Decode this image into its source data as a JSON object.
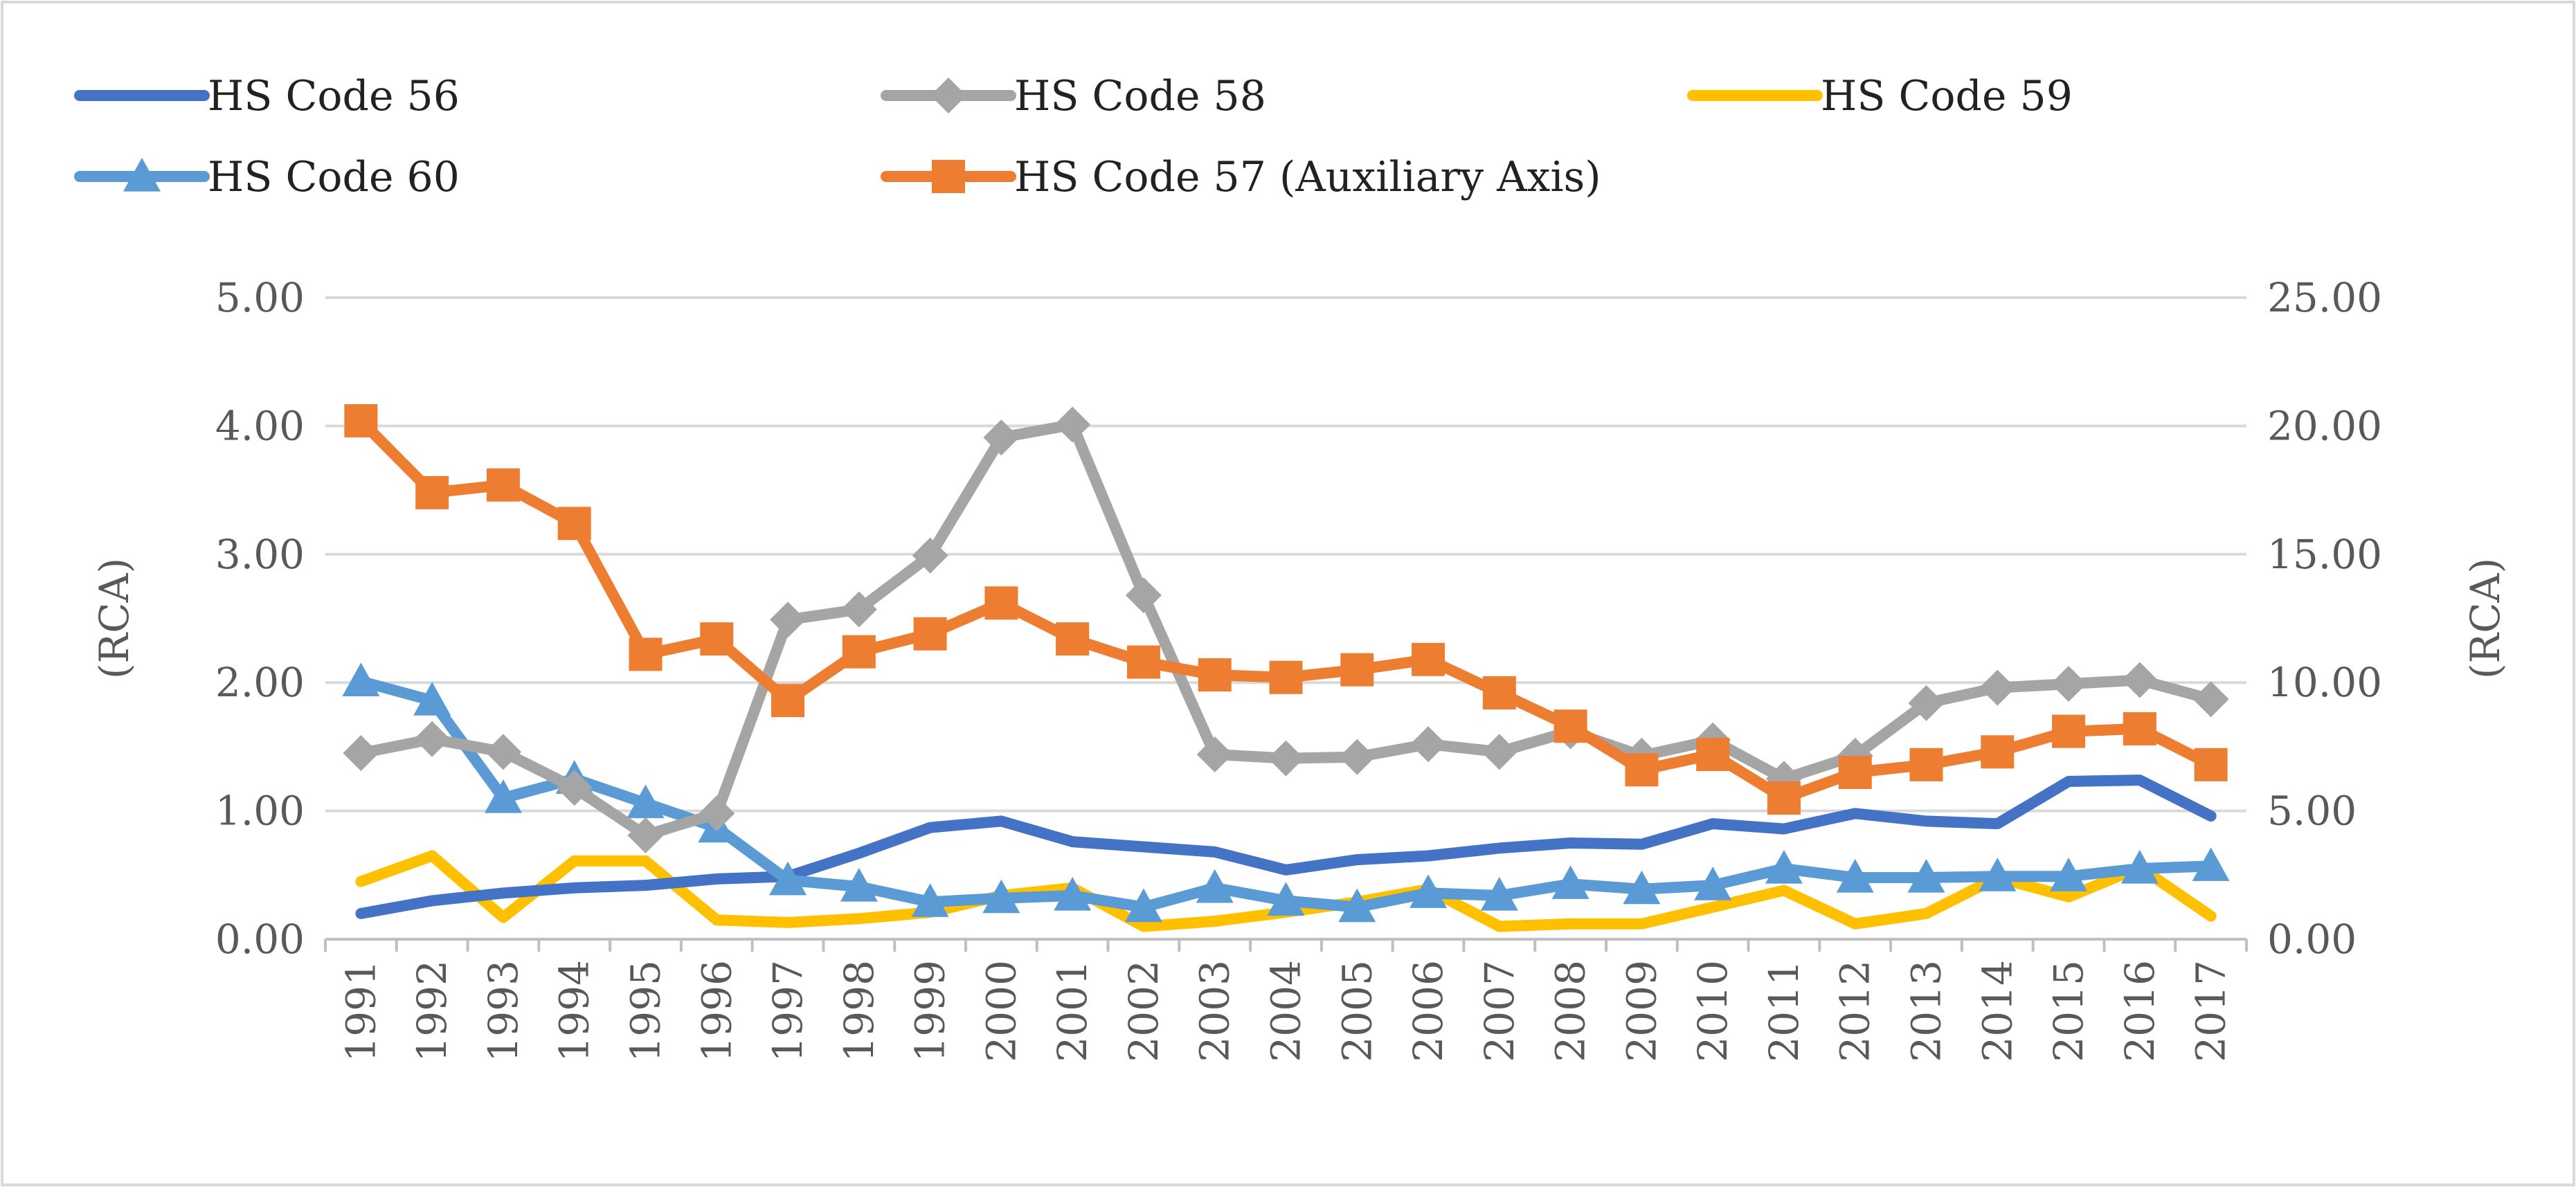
{
  "chart_data": {
    "type": "line",
    "title": "",
    "x": [
      "1991",
      "1992",
      "1993",
      "1994",
      "1995",
      "1996",
      "1997",
      "1998",
      "1999",
      "2000",
      "2001",
      "2002",
      "2003",
      "2004",
      "2005",
      "2006",
      "2007",
      "2008",
      "2009",
      "2010",
      "2011",
      "2012",
      "2013",
      "2014",
      "2015",
      "2016",
      "2017"
    ],
    "y_left": {
      "label": "(RCA)",
      "ticks": [
        "0.00",
        "1.00",
        "2.00",
        "3.00",
        "4.00",
        "5.00"
      ],
      "ylim": [
        0,
        5
      ]
    },
    "y_right": {
      "label": "(RCA)",
      "ticks": [
        "0.00",
        "5.00",
        "10.00",
        "15.00",
        "20.00",
        "25.00"
      ],
      "ylim": [
        0,
        25
      ]
    },
    "grid": "horizontal",
    "legend_position": "top",
    "series": [
      {
        "name": "HS Code 56",
        "axis": "left",
        "color": "#4472C4",
        "marker": "none",
        "values": [
          0.2,
          0.3,
          0.36,
          0.4,
          0.42,
          0.47,
          0.49,
          0.67,
          0.87,
          0.92,
          0.76,
          0.72,
          0.68,
          0.54,
          0.62,
          0.65,
          0.71,
          0.75,
          0.74,
          0.9,
          0.86,
          0.98,
          0.92,
          0.9,
          1.23,
          1.24,
          0.96
        ]
      },
      {
        "name": "HS Code 58",
        "axis": "left",
        "color": "#A5A5A5",
        "marker": "diamond",
        "values": [
          1.45,
          1.56,
          1.46,
          1.18,
          0.81,
          0.98,
          2.49,
          2.57,
          2.99,
          3.91,
          4.01,
          2.68,
          1.44,
          1.41,
          1.42,
          1.52,
          1.46,
          1.62,
          1.43,
          1.55,
          1.25,
          1.43,
          1.84,
          1.96,
          1.99,
          2.02,
          1.87
        ]
      },
      {
        "name": "HS Code 59",
        "axis": "left",
        "color": "#FFC000",
        "marker": "none",
        "values": [
          0.45,
          0.65,
          0.17,
          0.61,
          0.61,
          0.15,
          0.13,
          0.16,
          0.21,
          0.34,
          0.4,
          0.1,
          0.14,
          0.21,
          0.29,
          0.39,
          0.1,
          0.12,
          0.12,
          0.25,
          0.38,
          0.12,
          0.2,
          0.48,
          0.33,
          0.56,
          0.18
        ]
      },
      {
        "name": "HS Code 60",
        "axis": "left",
        "color": "#5B9BD5",
        "marker": "triangle",
        "values": [
          2.01,
          1.86,
          1.1,
          1.25,
          1.06,
          0.87,
          0.46,
          0.41,
          0.29,
          0.32,
          0.34,
          0.25,
          0.4,
          0.3,
          0.25,
          0.36,
          0.34,
          0.43,
          0.39,
          0.42,
          0.55,
          0.48,
          0.48,
          0.49,
          0.49,
          0.55,
          0.57
        ]
      },
      {
        "name": "HS Code 57 (Auxiliary Axis)",
        "axis": "right",
        "color": "#ED7D31",
        "marker": "square",
        "values": [
          20.2,
          17.4,
          17.7,
          16.2,
          11.1,
          11.7,
          9.3,
          11.2,
          11.9,
          13.1,
          11.7,
          10.8,
          10.3,
          10.2,
          10.5,
          10.9,
          9.6,
          8.3,
          6.6,
          7.2,
          5.5,
          6.5,
          6.8,
          7.3,
          8.1,
          8.2,
          6.8
        ]
      }
    ]
  }
}
